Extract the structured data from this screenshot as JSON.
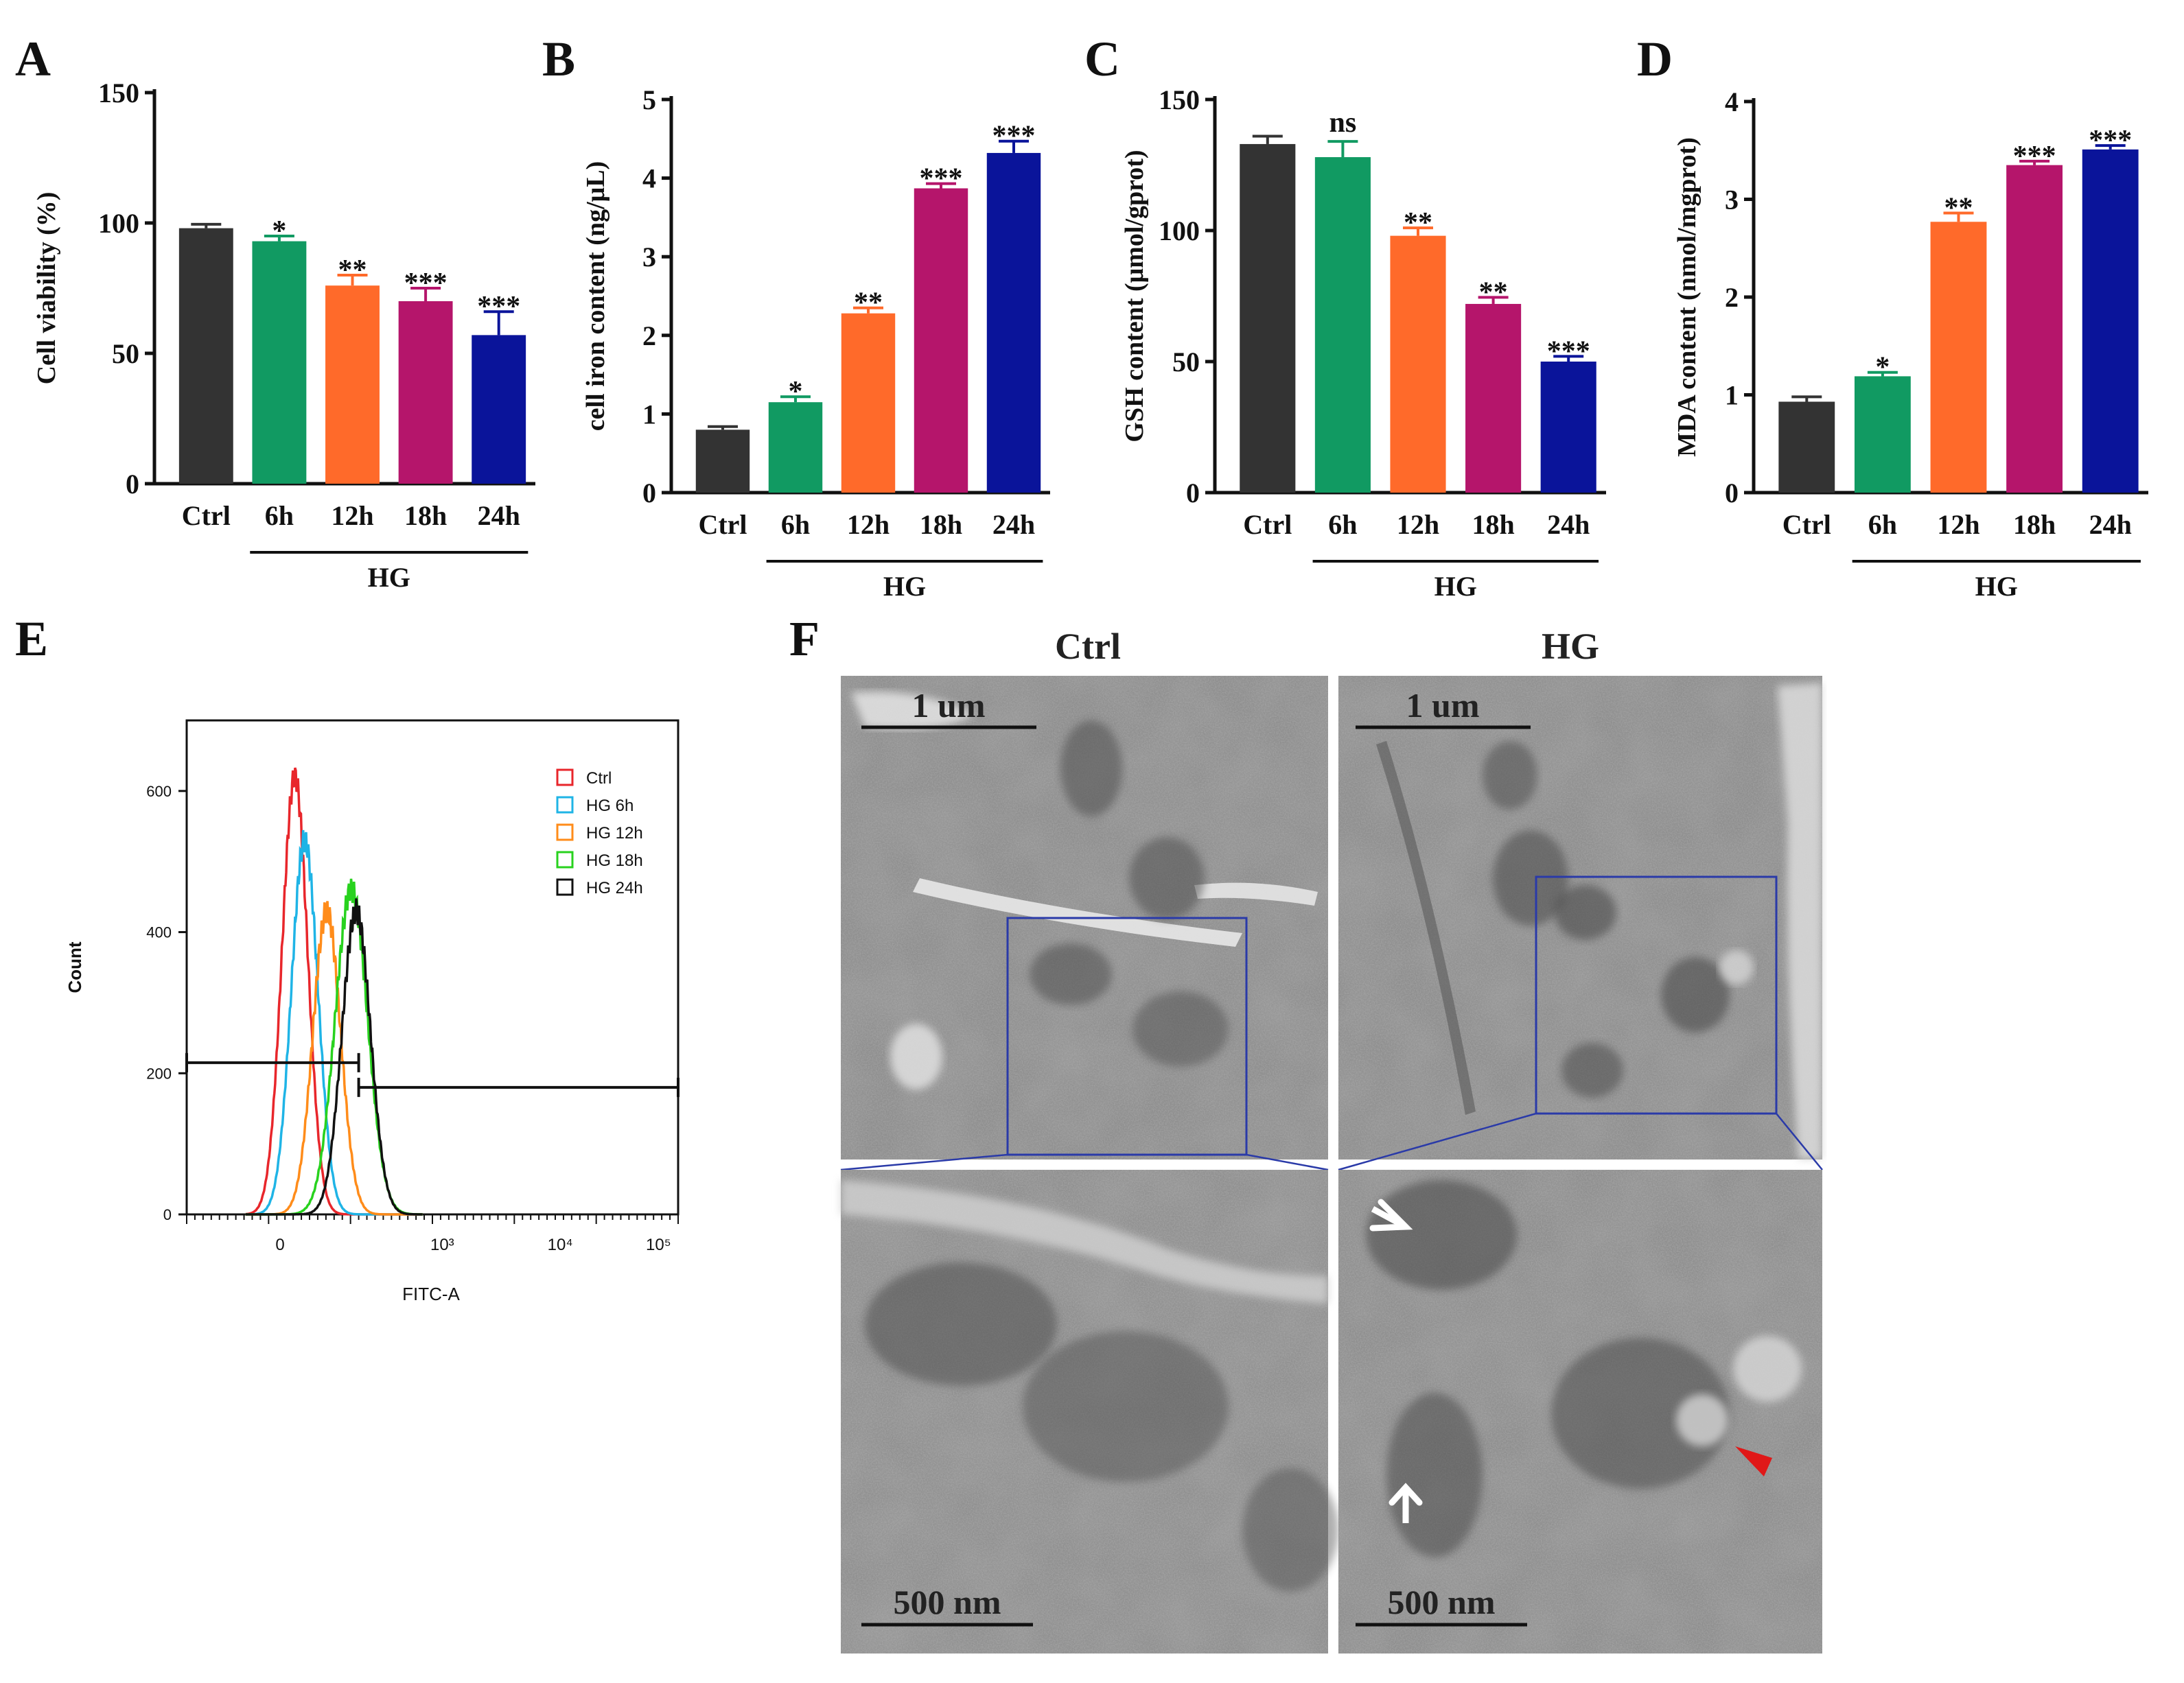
{
  "panels": {
    "a": "A",
    "b": "B",
    "c": "C",
    "d": "D",
    "e": "E",
    "f": "F"
  },
  "group_label": "HG",
  "bar_colors": [
    "#333333",
    "#119a62",
    "#ff6a2a",
    "#b5156b",
    "#0a149a"
  ],
  "chart_data": [
    {
      "type": "bar",
      "panel": "A",
      "title": "",
      "xlabel": "HG",
      "ylabel": "Cell viability (%)",
      "categories": [
        "Ctrl",
        "6h",
        "12h",
        "18h",
        "24h"
      ],
      "values": [
        98,
        93,
        76,
        70,
        57
      ],
      "errors": [
        1.5,
        2,
        4,
        5,
        9
      ],
      "significance": [
        "",
        "*",
        "**",
        "***",
        "***"
      ],
      "ylim": [
        0,
        150
      ],
      "yticks": [
        0,
        50,
        100,
        150
      ]
    },
    {
      "type": "bar",
      "panel": "B",
      "title": "",
      "xlabel": "HG",
      "ylabel": "cell iron content (ng/μL)",
      "categories": [
        "Ctrl",
        "6h",
        "12h",
        "18h",
        "24h"
      ],
      "values": [
        0.8,
        1.15,
        2.28,
        3.87,
        4.32
      ],
      "errors": [
        0.04,
        0.07,
        0.07,
        0.06,
        0.15
      ],
      "significance": [
        "",
        "*",
        "**",
        "***",
        "***"
      ],
      "ylim": [
        0,
        5
      ],
      "yticks": [
        0,
        1,
        2,
        3,
        4,
        5
      ]
    },
    {
      "type": "bar",
      "panel": "C",
      "title": "",
      "xlabel": "HG",
      "ylabel": "GSH content (μmol/gprot)",
      "categories": [
        "Ctrl",
        "6h",
        "12h",
        "18h",
        "24h"
      ],
      "values": [
        133,
        128,
        98,
        72,
        50
      ],
      "errors": [
        3,
        6,
        3,
        2.5,
        2
      ],
      "significance": [
        "",
        "ns",
        "**",
        "**",
        "***"
      ],
      "ylim": [
        0,
        150
      ],
      "yticks": [
        0,
        50,
        100,
        150
      ]
    },
    {
      "type": "bar",
      "panel": "D",
      "title": "",
      "xlabel": "HG",
      "ylabel": "MDA content (nmol/mgprot)",
      "categories": [
        "Ctrl",
        "6h",
        "12h",
        "18h",
        "24h"
      ],
      "values": [
        0.93,
        1.19,
        2.77,
        3.35,
        3.51
      ],
      "errors": [
        0.05,
        0.04,
        0.09,
        0.04,
        0.04
      ],
      "significance": [
        "",
        "*",
        "**",
        "***",
        "***"
      ],
      "ylim": [
        0,
        4
      ],
      "yticks": [
        0,
        1,
        2,
        3,
        4
      ]
    },
    {
      "type": "line",
      "panel": "E",
      "title": "",
      "xlabel": "FITC-A",
      "ylabel": "Count",
      "ylim": [
        0,
        700
      ],
      "yticks": [
        0,
        200,
        400,
        600
      ],
      "xticks": [
        "0",
        "10³",
        "10⁴",
        "10⁵"
      ],
      "legend_position": "top-right",
      "series": [
        {
          "name": "Ctrl",
          "color": "#e8262b",
          "peak_x": 0.22,
          "peak": 620,
          "width": 0.026
        },
        {
          "name": "HG 6h",
          "color": "#1fb4e6",
          "peak_x": 0.24,
          "peak": 530,
          "width": 0.027
        },
        {
          "name": "HG 12h",
          "color": "#ff8c1a",
          "peak_x": 0.285,
          "peak": 430,
          "width": 0.028
        },
        {
          "name": "HG 18h",
          "color": "#28d21e",
          "peak_x": 0.335,
          "peak": 460,
          "width": 0.033
        },
        {
          "name": "HG 24h",
          "color": "#111111",
          "peak_x": 0.345,
          "peak": 430,
          "width": 0.029
        }
      ],
      "gates": [
        {
          "y": 215,
          "x_range": [
            0.0,
            0.35
          ]
        },
        {
          "y": 180,
          "x_range": [
            0.35,
            1.0
          ]
        }
      ]
    }
  ],
  "em": {
    "ctrl_title": "Ctrl",
    "hg_title": "HG",
    "scale_top": "1 um",
    "scale_bottom": "500 nm"
  }
}
